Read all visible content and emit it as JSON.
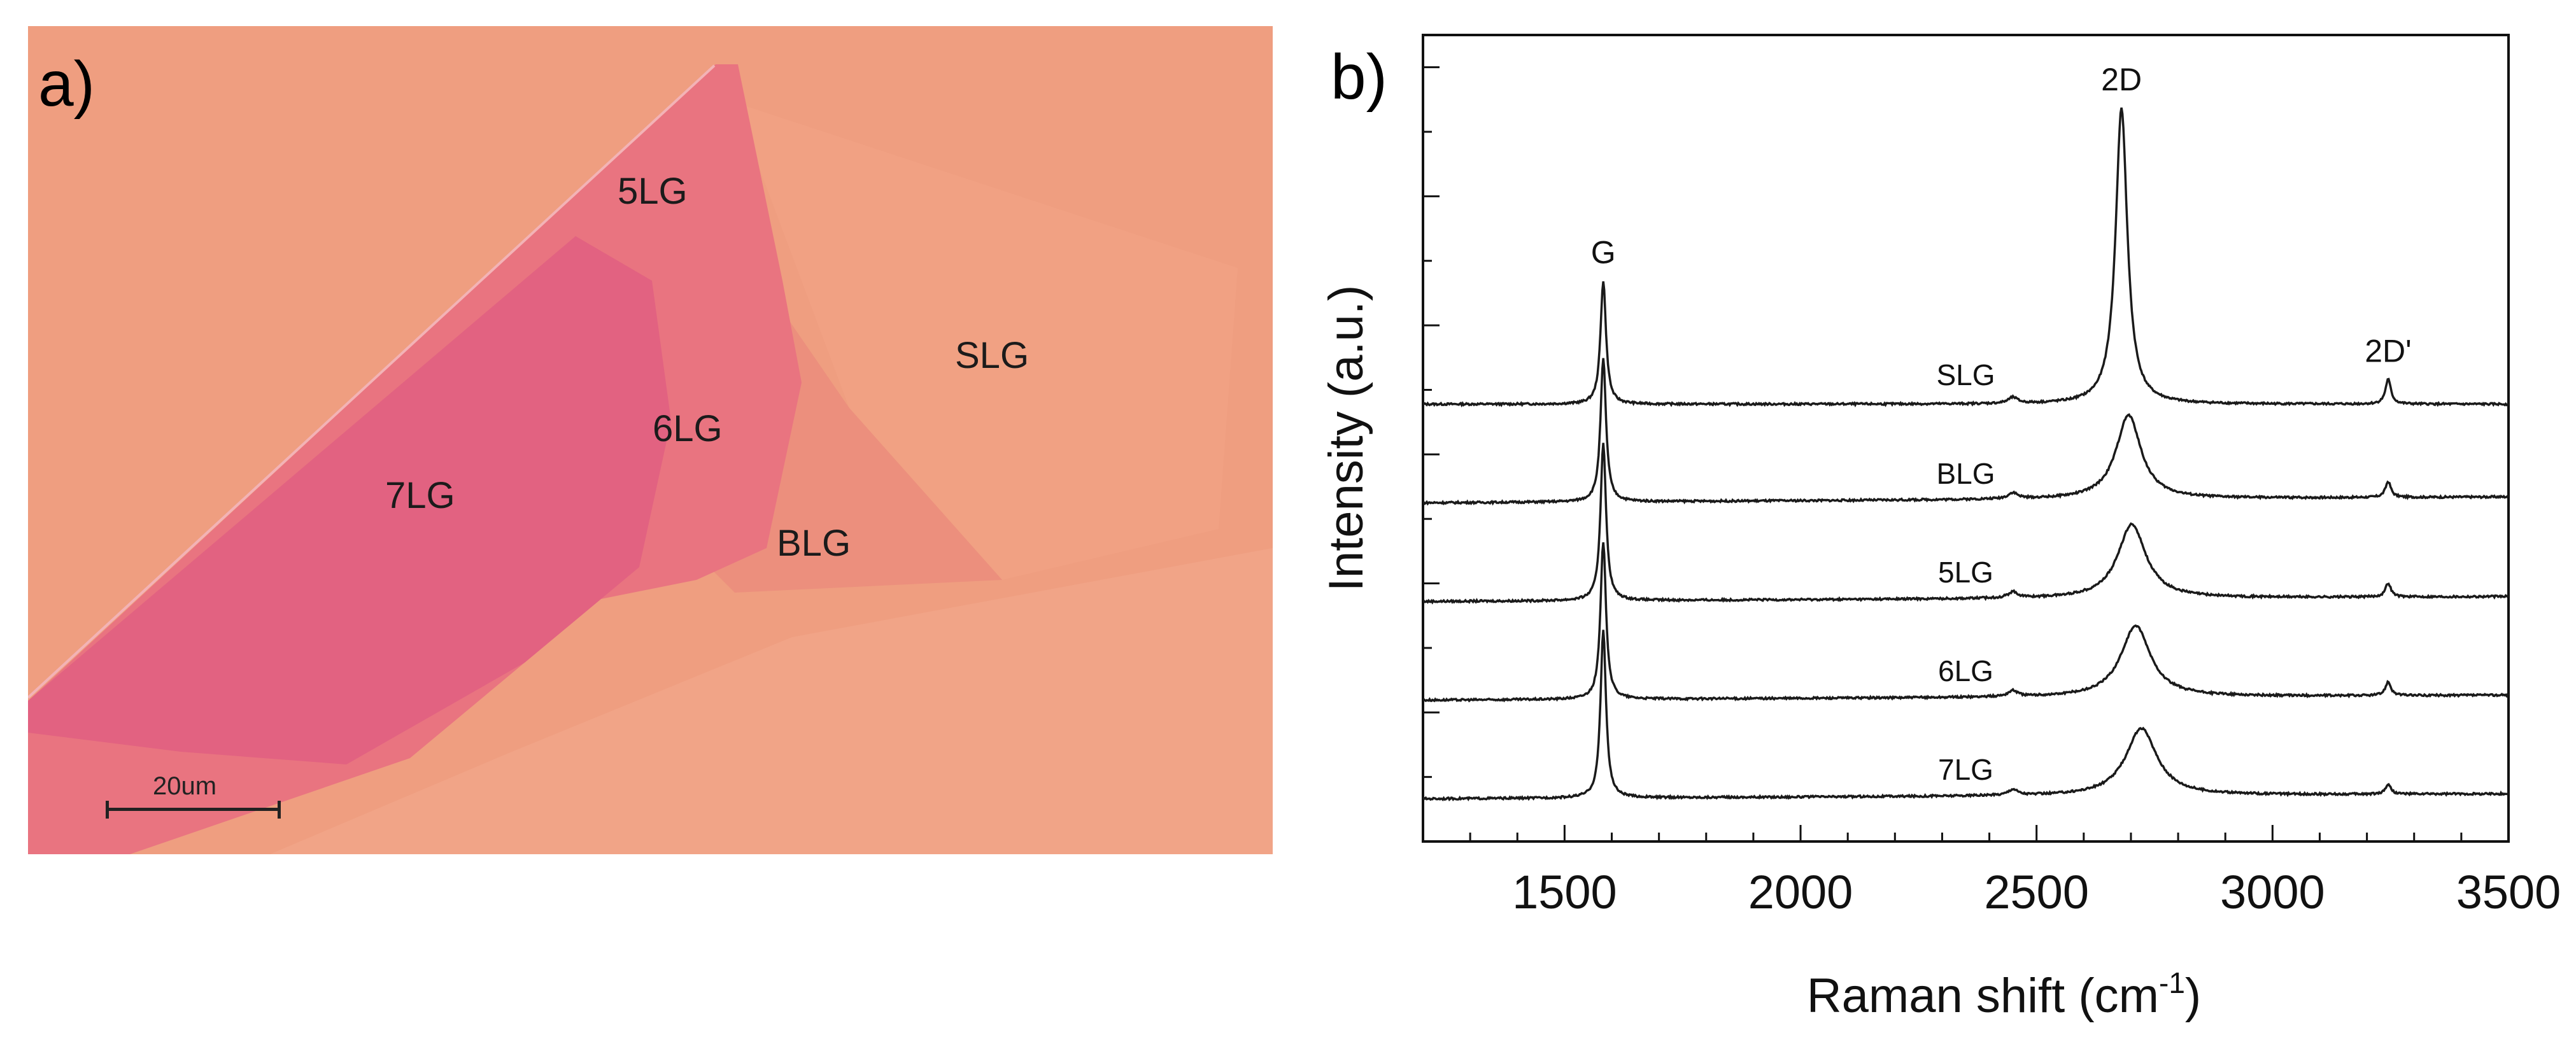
{
  "panel_a": {
    "label": "a)",
    "flake_labels": {
      "five_lg": "5LG",
      "six_lg": "6LG",
      "seven_lg": "7LG",
      "blg": "BLG",
      "slg": "SLG"
    },
    "scale_bar": "20um",
    "colors": {
      "substrate": "#ef9e80",
      "slg": "#f1a183",
      "blg": "#ec8f7d",
      "multilayer": "#e97480",
      "seven_lg": "#e26281"
    }
  },
  "chart_data": {
    "type": "line",
    "panel_label": "b)",
    "xlabel": "Raman shift (cm",
    "xlabel_sup": "-1",
    "xlabel_close": ")",
    "ylabel": "Intensity (a.u.)",
    "xlim": [
      1200,
      3500
    ],
    "xticks": [
      "1500",
      "2000",
      "2500",
      "3000",
      "3500"
    ],
    "xtick_values": [
      1500,
      2000,
      2500,
      3000,
      3500
    ],
    "peak_labels": [
      "G",
      "2D",
      "2D'"
    ],
    "peak_positions": [
      1582,
      2680,
      3245
    ],
    "series": [
      {
        "name": "SLG",
        "offset": 4.0,
        "g": 1.25,
        "d2": 3.0,
        "d2_center": 2680,
        "d2_width": 15,
        "d2p": 0.25,
        "baseline_tilt": 0.0
      },
      {
        "name": "BLG",
        "offset": 3.0,
        "g": 1.45,
        "d2": 0.85,
        "d2_center": 2695,
        "d2_width": 32,
        "d2p": 0.16,
        "baseline_tilt": 0.06
      },
      {
        "name": "5LG",
        "offset": 2.0,
        "g": 1.6,
        "d2": 0.75,
        "d2_center": 2702,
        "d2_width": 36,
        "d2p": 0.14,
        "baseline_tilt": 0.05
      },
      {
        "name": "6LG",
        "offset": 1.0,
        "g": 1.6,
        "d2": 0.72,
        "d2_center": 2710,
        "d2_width": 38,
        "d2p": 0.14,
        "baseline_tilt": 0.05
      },
      {
        "name": "7LG",
        "offset": 0.0,
        "g": 1.7,
        "d2": 0.68,
        "d2_center": 2722,
        "d2_width": 40,
        "d2p": 0.1,
        "baseline_tilt": 0.05
      }
    ]
  }
}
